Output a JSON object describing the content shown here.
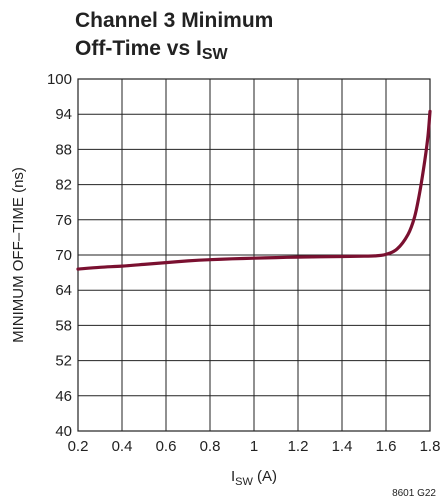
{
  "chart_data": {
    "type": "line",
    "title": {
      "line1": "Channel 3 Minimum",
      "line2_main": "Off-Time vs I",
      "line2_sub": "SW"
    },
    "xlabel": {
      "main": "I",
      "sub": "SW",
      "suffix": " (A)"
    },
    "ylabel": "MINIMUM OFF–TIME (ns)",
    "xlim": [
      0.2,
      1.8
    ],
    "ylim": [
      40,
      100
    ],
    "x_ticks": [
      "0.2",
      "0.4",
      "0.6",
      "0.8",
      "1",
      "1.2",
      "1.4",
      "1.6",
      "1.8"
    ],
    "y_ticks": [
      "40",
      "46",
      "52",
      "58",
      "64",
      "70",
      "76",
      "82",
      "88",
      "94",
      "100"
    ],
    "grid": true,
    "line_color": "#7a1030",
    "series": [
      {
        "x": [
          0.2,
          0.3,
          0.4,
          0.5,
          0.6,
          0.7,
          0.8,
          0.9,
          1.0,
          1.1,
          1.2,
          1.3,
          1.4,
          1.5,
          1.55,
          1.6,
          1.65,
          1.7,
          1.73,
          1.75,
          1.77,
          1.79,
          1.8
        ],
        "y": [
          67.6,
          67.9,
          68.1,
          68.4,
          68.7,
          69.0,
          69.2,
          69.35,
          69.45,
          69.55,
          69.65,
          69.7,
          69.75,
          69.8,
          69.85,
          70.1,
          71.0,
          73.5,
          76.5,
          80.0,
          84.5,
          90.0,
          94.5
        ]
      }
    ]
  },
  "figure_code": "8601 G22"
}
